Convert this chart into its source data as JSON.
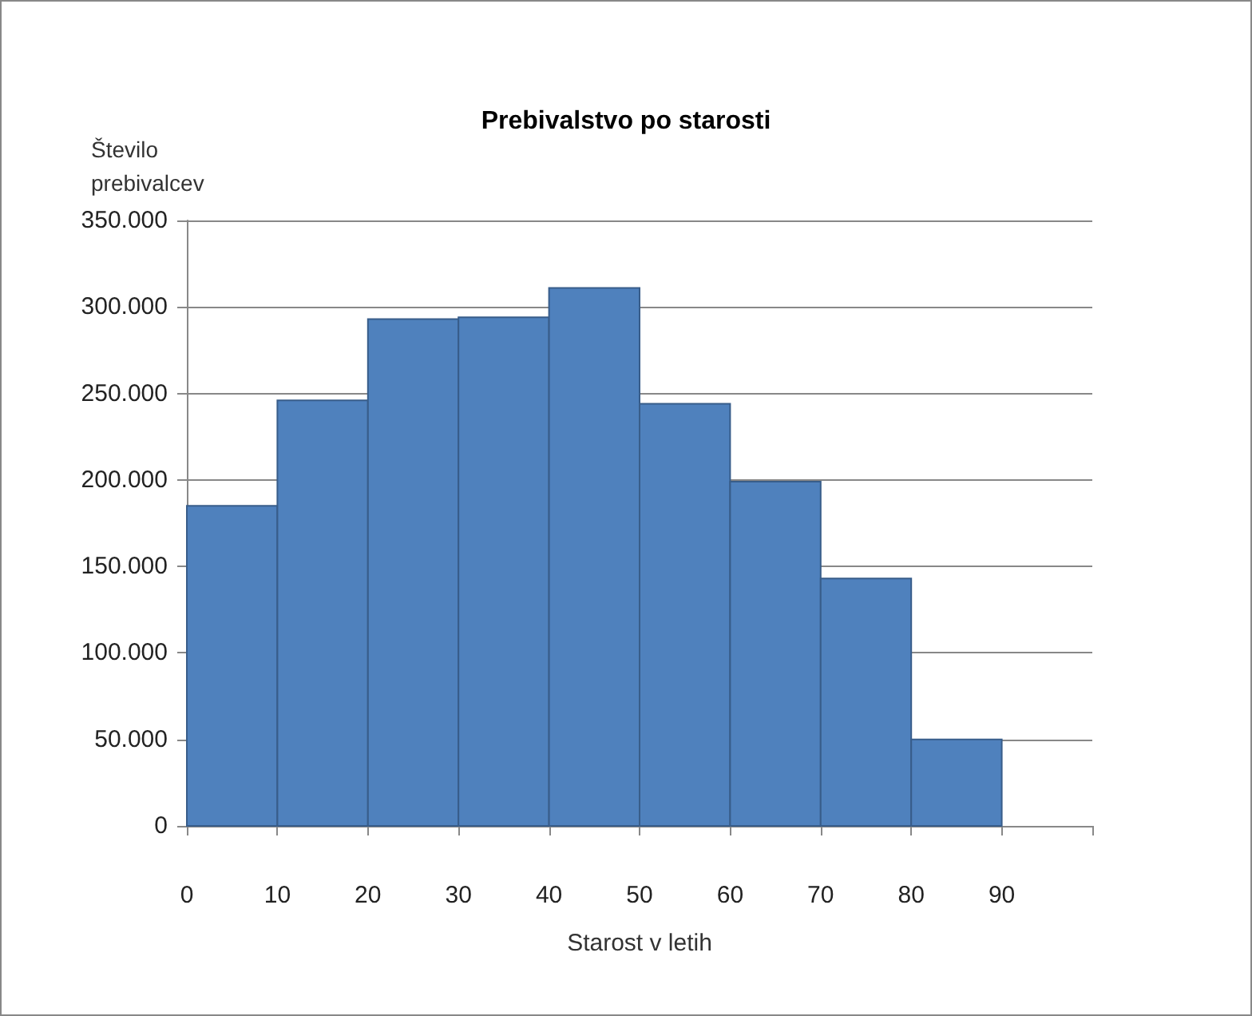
{
  "chart_data": {
    "type": "histogram",
    "title": "Prebivalstvo po starosti",
    "xlabel": "Starost v letih",
    "ylabel": "Število prebivalcev",
    "bins": [
      0,
      10,
      20,
      30,
      40,
      50,
      60,
      70,
      80,
      90
    ],
    "values": [
      185000,
      246000,
      293000,
      294000,
      311000,
      244000,
      199000,
      143000,
      50000
    ],
    "color": "#4f81bd",
    "xlim": [
      0,
      100
    ],
    "xticks": [
      0,
      10,
      20,
      30,
      40,
      50,
      60,
      70,
      80,
      90,
      {
        "value": 100,
        "label": null
      }
    ],
    "ylim": [
      0,
      350000
    ],
    "yticks": [
      0,
      {
        "value": 50000,
        "label": "50.000"
      },
      {
        "value": 100000,
        "label": "100.000"
      },
      {
        "value": 150000,
        "label": "150.000"
      },
      {
        "value": 200000,
        "label": "200.000"
      },
      {
        "value": 250000,
        "label": "250.000"
      },
      {
        "value": 300000,
        "label": "300.000"
      },
      {
        "value": 350000,
        "label": "350.000"
      }
    ],
    "grid": "y"
  }
}
